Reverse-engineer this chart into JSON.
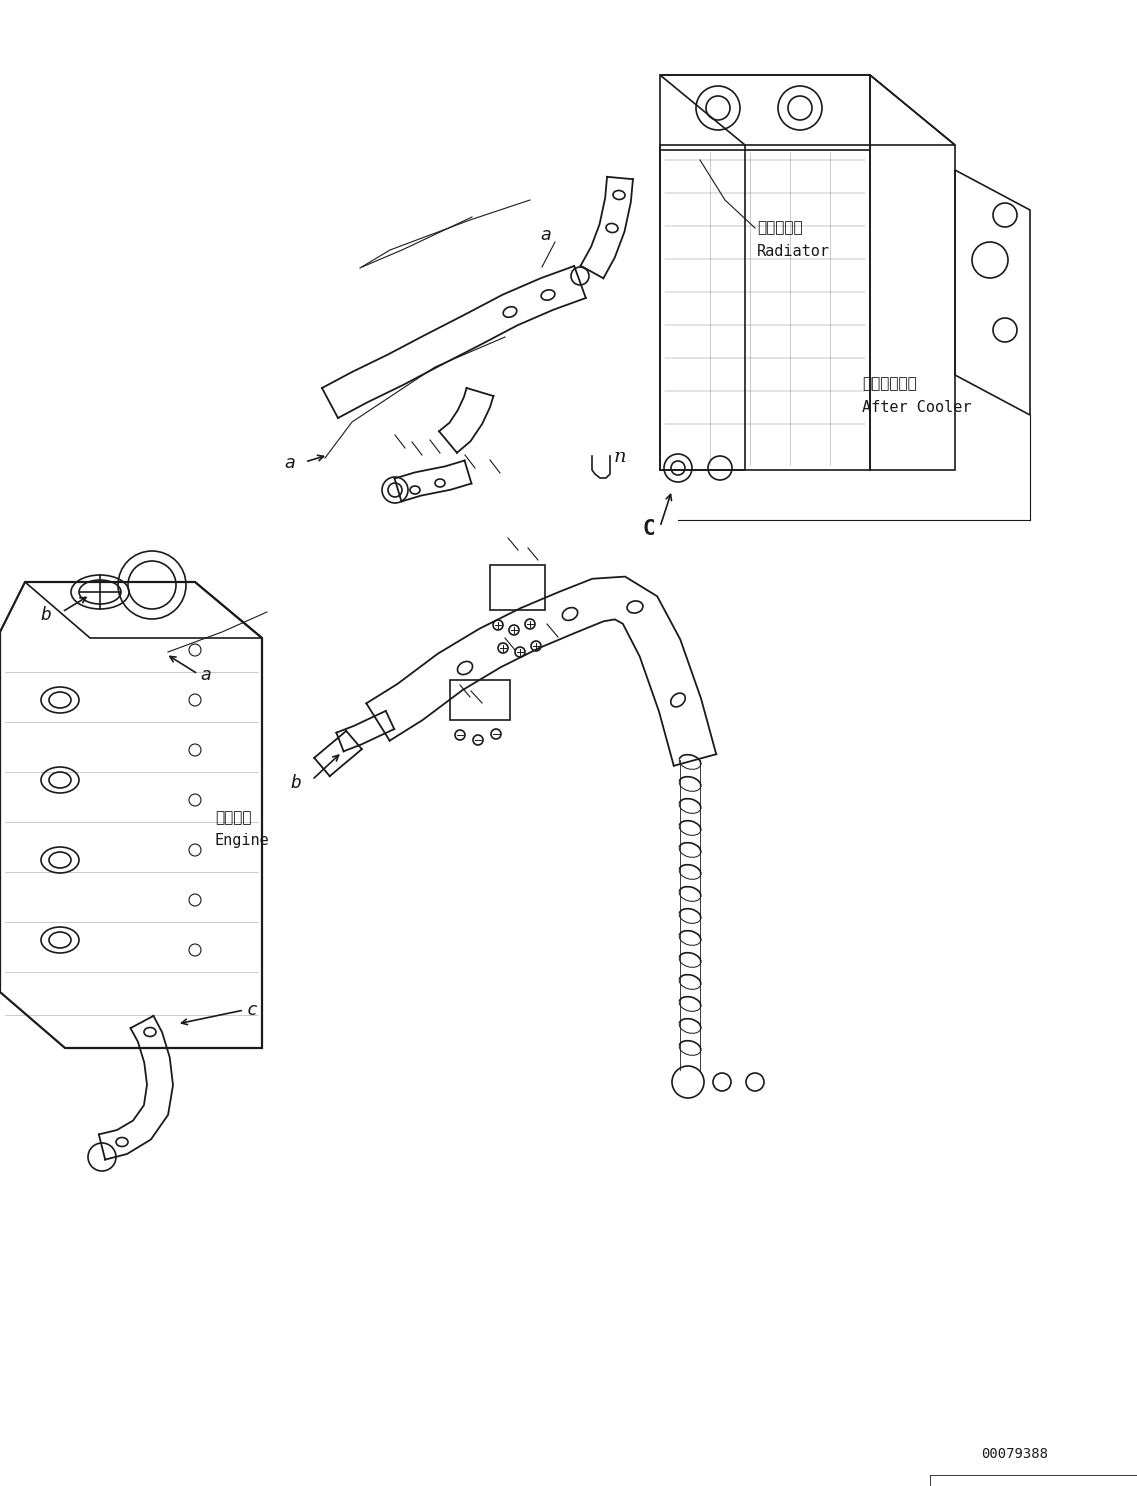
{
  "figure_width": 11.37,
  "figure_height": 14.86,
  "dpi": 100,
  "bg_color": "#ffffff",
  "line_color": "#1a1a1a",
  "part_number": "00079388",
  "radiator_label_jp": "ラジエータ",
  "radiator_label_en": "Radiator",
  "after_cooler_jp": "アフタクーラ",
  "after_cooler_en": "After Cooler",
  "engine_jp": "エンジン",
  "engine_en": "Engine",
  "label_a": "a",
  "label_b": "b",
  "label_c": "c",
  "label_n": "n",
  "label_C": "C",
  "font_size_labels": 13,
  "font_size_small": 10,
  "font_size_component": 11
}
